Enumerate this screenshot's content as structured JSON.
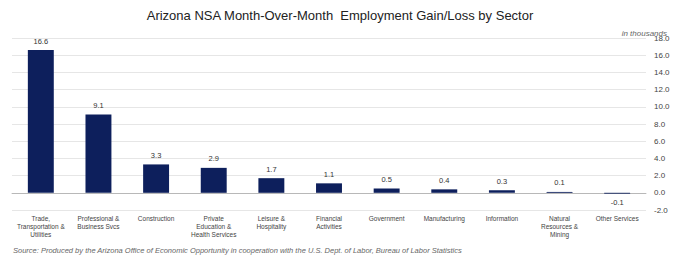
{
  "chart_data": {
    "type": "bar",
    "title": "Arizona NSA Month-Over-Month  Employment Gain/Loss by Sector",
    "subtitle": "in thousands",
    "source_text": "Source: Produced by the Arizona Office of Economic Opportunity in cooperation with the U.S. Dept. of Labor, Bureau of Labor Statistics",
    "categories": [
      "Trade,\nTransportation &\nUtilities",
      "Professional &\nBusiness Svcs",
      "Construction",
      "Private\nEducation &\nHealth Services",
      "Leisure &\nHospitality",
      "Financial\nActivities",
      "Government",
      "Manufacturing",
      "Information",
      "Natural\nResources &\nMining",
      "Other Services"
    ],
    "values": [
      16.6,
      9.1,
      3.3,
      2.9,
      1.7,
      1.1,
      0.5,
      0.4,
      0.3,
      0.1,
      -0.1
    ],
    "color": "#0d1f5c",
    "ylim": [
      -2.0,
      18.0
    ],
    "yticks": [
      {
        "value": -2.0,
        "label": "-2.0"
      },
      {
        "value": 0.0,
        "label": "0.0"
      },
      {
        "value": 2.0,
        "label": "2.0"
      },
      {
        "value": 4.0,
        "label": "4.0"
      },
      {
        "value": 6.0,
        "label": "6.0"
      },
      {
        "value": 8.0,
        "label": "8.0"
      },
      {
        "value": 10.0,
        "label": "10.0"
      },
      {
        "value": 12.0,
        "label": "12.0"
      },
      {
        "value": 14.0,
        "label": "14.0"
      },
      {
        "value": 16.0,
        "label": "16.0"
      },
      {
        "value": 18.0,
        "label": "18.0"
      }
    ],
    "grid": true,
    "data_labels": true
  }
}
